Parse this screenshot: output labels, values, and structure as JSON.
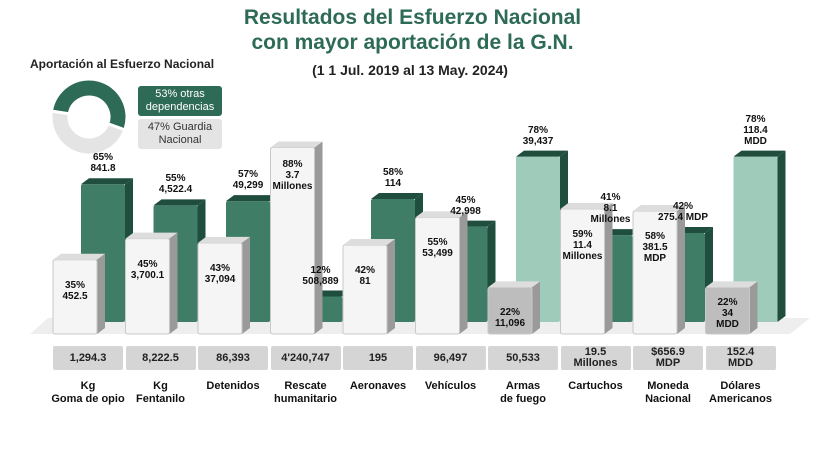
{
  "header": {
    "title_line1": "Resultados del Esfuerzo Nacional",
    "title_line2": "con mayor aportación de la G.N.",
    "period": "(1 1 Jul. 2019 al 13 May. 2024)"
  },
  "legend": {
    "title": "Aportación al Esfuerzo Nacional",
    "other_label": "53% otras dependencias",
    "gn_label": "47% Guardia Nacional",
    "other_pct": 53,
    "gn_pct": 47,
    "other_color": "#2e6b56",
    "gn_color": "#e4e4e4"
  },
  "chart_data": {
    "type": "bar",
    "categories": [
      "Kg Goma de opio",
      "Kg Fentanilo",
      "Detenidos",
      "Rescate humanitario",
      "Aeronaves",
      "Vehículos",
      "Armas de fuego",
      "Cartuchos",
      "Moneda Nacional",
      "Dólares Americanos"
    ],
    "totals": [
      "1,294.3",
      "8,222.5",
      "86,393",
      "4'240,747",
      "195",
      "96,497",
      "50,533",
      "19.5 Millones",
      "$656.9 MDP",
      "152.4 MDD"
    ],
    "series": [
      {
        "name": "Guardia Nacional",
        "values": [
          35,
          45,
          43,
          88,
          42,
          55,
          22,
          59,
          58,
          22
        ],
        "labels": [
          "35%\n452.5",
          "45%\n3,700.1",
          "43%\n37,094",
          "88%\n3.7\nMillones",
          "42%\n81",
          "55%\n53,499",
          "22%\n11,096",
          "59%\n11.4\nMillones",
          "58%\n381.5\nMDP",
          "22%\n34\nMDD"
        ]
      },
      {
        "name": "otras dependencias",
        "values": [
          65,
          55,
          57,
          12,
          58,
          45,
          78,
          41,
          42,
          78
        ],
        "labels": [
          "65%\n841.8",
          "55%\n4,522.4",
          "57%\n49,299",
          "12%\n508,889",
          "58%\n114",
          "45%\n42,998",
          "78%\n39,437",
          "41%\n8.1\nMillones",
          "42%\n275.4 MDP",
          "78%\n118.4\nMDD"
        ]
      }
    ],
    "ylim": [
      0,
      100
    ],
    "colors": {
      "gn": "#f5f5f5",
      "gn_border": "#c8c8c8",
      "gn_dark": "#9a9a9a",
      "other": "#3f7d67",
      "other_light": "#9fcbba",
      "other_dark": "#1f4e3e"
    }
  }
}
